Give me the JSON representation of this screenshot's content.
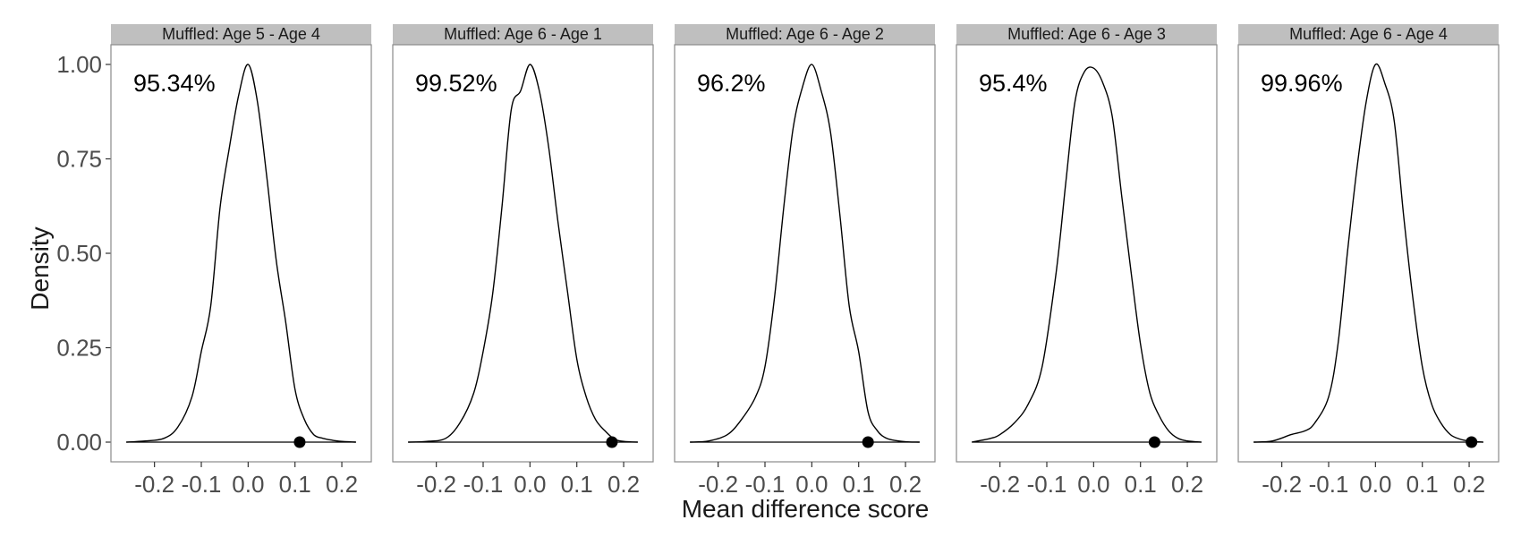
{
  "chart_data": {
    "type": "density",
    "xlabel": "Mean difference score",
    "ylabel": "Density",
    "xlim": [
      -0.27,
      0.24
    ],
    "ylim": [
      0,
      1
    ],
    "x_ticks": [
      "-0.2",
      "-0.1",
      "0.0",
      "0.1",
      "0.2"
    ],
    "x_tick_values": [
      -0.2,
      -0.1,
      0.0,
      0.1,
      0.2
    ],
    "y_ticks": [
      "0.00",
      "0.25",
      "0.50",
      "0.75",
      "1.00"
    ],
    "y_tick_values": [
      0,
      0.25,
      0.5,
      0.75,
      1.0
    ],
    "grid": false,
    "panels": [
      {
        "title": "Muffled: Age 5 - Age 4",
        "percent_label": "95.34%",
        "observed_x": 0.11,
        "density": {
          "x": [
            -0.26,
            -0.22,
            -0.18,
            -0.15,
            -0.12,
            -0.1,
            -0.08,
            -0.06,
            -0.04,
            -0.02,
            0.0,
            0.02,
            0.04,
            0.06,
            0.08,
            0.1,
            0.12,
            0.14,
            0.16,
            0.18,
            0.2,
            0.23
          ],
          "y": [
            0.0,
            0.003,
            0.01,
            0.04,
            0.12,
            0.24,
            0.36,
            0.62,
            0.78,
            0.92,
            1.0,
            0.9,
            0.7,
            0.48,
            0.32,
            0.14,
            0.06,
            0.02,
            0.01,
            0.005,
            0.002,
            0.0
          ]
        }
      },
      {
        "title": "Muffled: Age 6 - Age 1",
        "percent_label": "99.52%",
        "observed_x": 0.175,
        "density": {
          "x": [
            -0.26,
            -0.22,
            -0.18,
            -0.15,
            -0.12,
            -0.1,
            -0.08,
            -0.06,
            -0.04,
            -0.02,
            0.0,
            0.02,
            0.04,
            0.06,
            0.08,
            0.1,
            0.12,
            0.14,
            0.16,
            0.18,
            0.2,
            0.23
          ],
          "y": [
            0.0,
            0.002,
            0.01,
            0.05,
            0.13,
            0.24,
            0.39,
            0.62,
            0.88,
            0.93,
            1.0,
            0.93,
            0.78,
            0.58,
            0.4,
            0.22,
            0.12,
            0.06,
            0.03,
            0.008,
            0.002,
            0.0
          ]
        }
      },
      {
        "title": "Muffled: Age 6 - Age 2",
        "percent_label": "96.2%",
        "observed_x": 0.12,
        "density": {
          "x": [
            -0.26,
            -0.22,
            -0.18,
            -0.15,
            -0.12,
            -0.1,
            -0.08,
            -0.06,
            -0.04,
            -0.02,
            0.0,
            0.02,
            0.04,
            0.06,
            0.08,
            0.1,
            0.12,
            0.14,
            0.16,
            0.18,
            0.2,
            0.23
          ],
          "y": [
            0.0,
            0.003,
            0.02,
            0.06,
            0.12,
            0.2,
            0.38,
            0.62,
            0.83,
            0.94,
            1.0,
            0.93,
            0.82,
            0.6,
            0.36,
            0.24,
            0.08,
            0.03,
            0.01,
            0.004,
            0.001,
            0.0
          ]
        }
      },
      {
        "title": "Muffled: Age 6 - Age 3",
        "percent_label": "95.4%",
        "observed_x": 0.13,
        "density": {
          "x": [
            -0.26,
            -0.22,
            -0.2,
            -0.17,
            -0.14,
            -0.11,
            -0.08,
            -0.06,
            -0.04,
            -0.02,
            0.0,
            0.02,
            0.04,
            0.06,
            0.08,
            0.1,
            0.12,
            0.14,
            0.16,
            0.18,
            0.2,
            0.23
          ],
          "y": [
            0.0,
            0.01,
            0.02,
            0.05,
            0.1,
            0.2,
            0.45,
            0.68,
            0.9,
            0.98,
            0.99,
            0.95,
            0.86,
            0.65,
            0.45,
            0.26,
            0.13,
            0.07,
            0.03,
            0.01,
            0.003,
            0.0
          ]
        }
      },
      {
        "title": "Muffled: Age 6 - Age 4",
        "percent_label": "99.96%",
        "observed_x": 0.205,
        "density": {
          "x": [
            -0.26,
            -0.22,
            -0.18,
            -0.15,
            -0.13,
            -0.1,
            -0.08,
            -0.06,
            -0.04,
            -0.02,
            0.0,
            0.02,
            0.04,
            0.06,
            0.08,
            0.1,
            0.12,
            0.14,
            0.16,
            0.18,
            0.2,
            0.23
          ],
          "y": [
            0.0,
            0.003,
            0.02,
            0.03,
            0.05,
            0.12,
            0.26,
            0.5,
            0.72,
            0.9,
            1.0,
            0.95,
            0.85,
            0.6,
            0.38,
            0.2,
            0.1,
            0.05,
            0.02,
            0.008,
            0.003,
            0.0
          ]
        }
      }
    ]
  },
  "colors": {
    "strip_fill": "#bfbfbf",
    "panel_border": "#8a8a8a",
    "curve": "#000000",
    "point": "#000000",
    "tick_text": "#4d4d4d",
    "title_text": "#1a1a1a"
  }
}
